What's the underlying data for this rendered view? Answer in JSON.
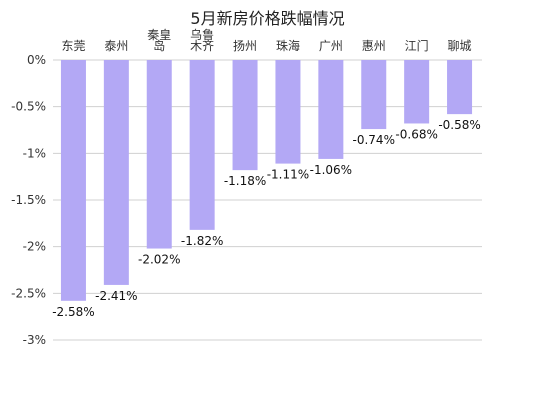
{
  "chart_data": {
    "type": "bar",
    "title": "5月新房价格跌幅情况",
    "xlabel": "",
    "ylabel": "",
    "categories": [
      [
        "东莞"
      ],
      [
        "泰州"
      ],
      [
        "秦皇",
        "岛"
      ],
      [
        "乌鲁",
        "木齐"
      ],
      [
        "扬州"
      ],
      [
        "珠海"
      ],
      [
        "广州"
      ],
      [
        "惠州"
      ],
      [
        "江门"
      ],
      [
        "聊城"
      ]
    ],
    "values": [
      -2.58,
      -2.41,
      -2.02,
      -1.82,
      -1.18,
      -1.11,
      -1.06,
      -0.74,
      -0.68,
      -0.58
    ],
    "data_labels": [
      "-2.58%",
      "-2.41%",
      "-2.02%",
      "-1.82%",
      "-1.18%",
      "-1.11%",
      "-1.06%",
      "-0.74%",
      "-0.68%",
      "-0.58%"
    ],
    "yticks": [
      0,
      -0.5,
      -1,
      -1.5,
      -2,
      -2.5,
      -3
    ],
    "ytick_labels": [
      "0%",
      "-0.5%",
      "-1%",
      "-1.5%",
      "-2%",
      "-2.5%",
      "-3%"
    ],
    "ylim": [
      -3,
      0
    ],
    "grid": true,
    "legend": "none",
    "bar_color": "#b3a8f5",
    "grid_color": "#d0d0d0"
  }
}
